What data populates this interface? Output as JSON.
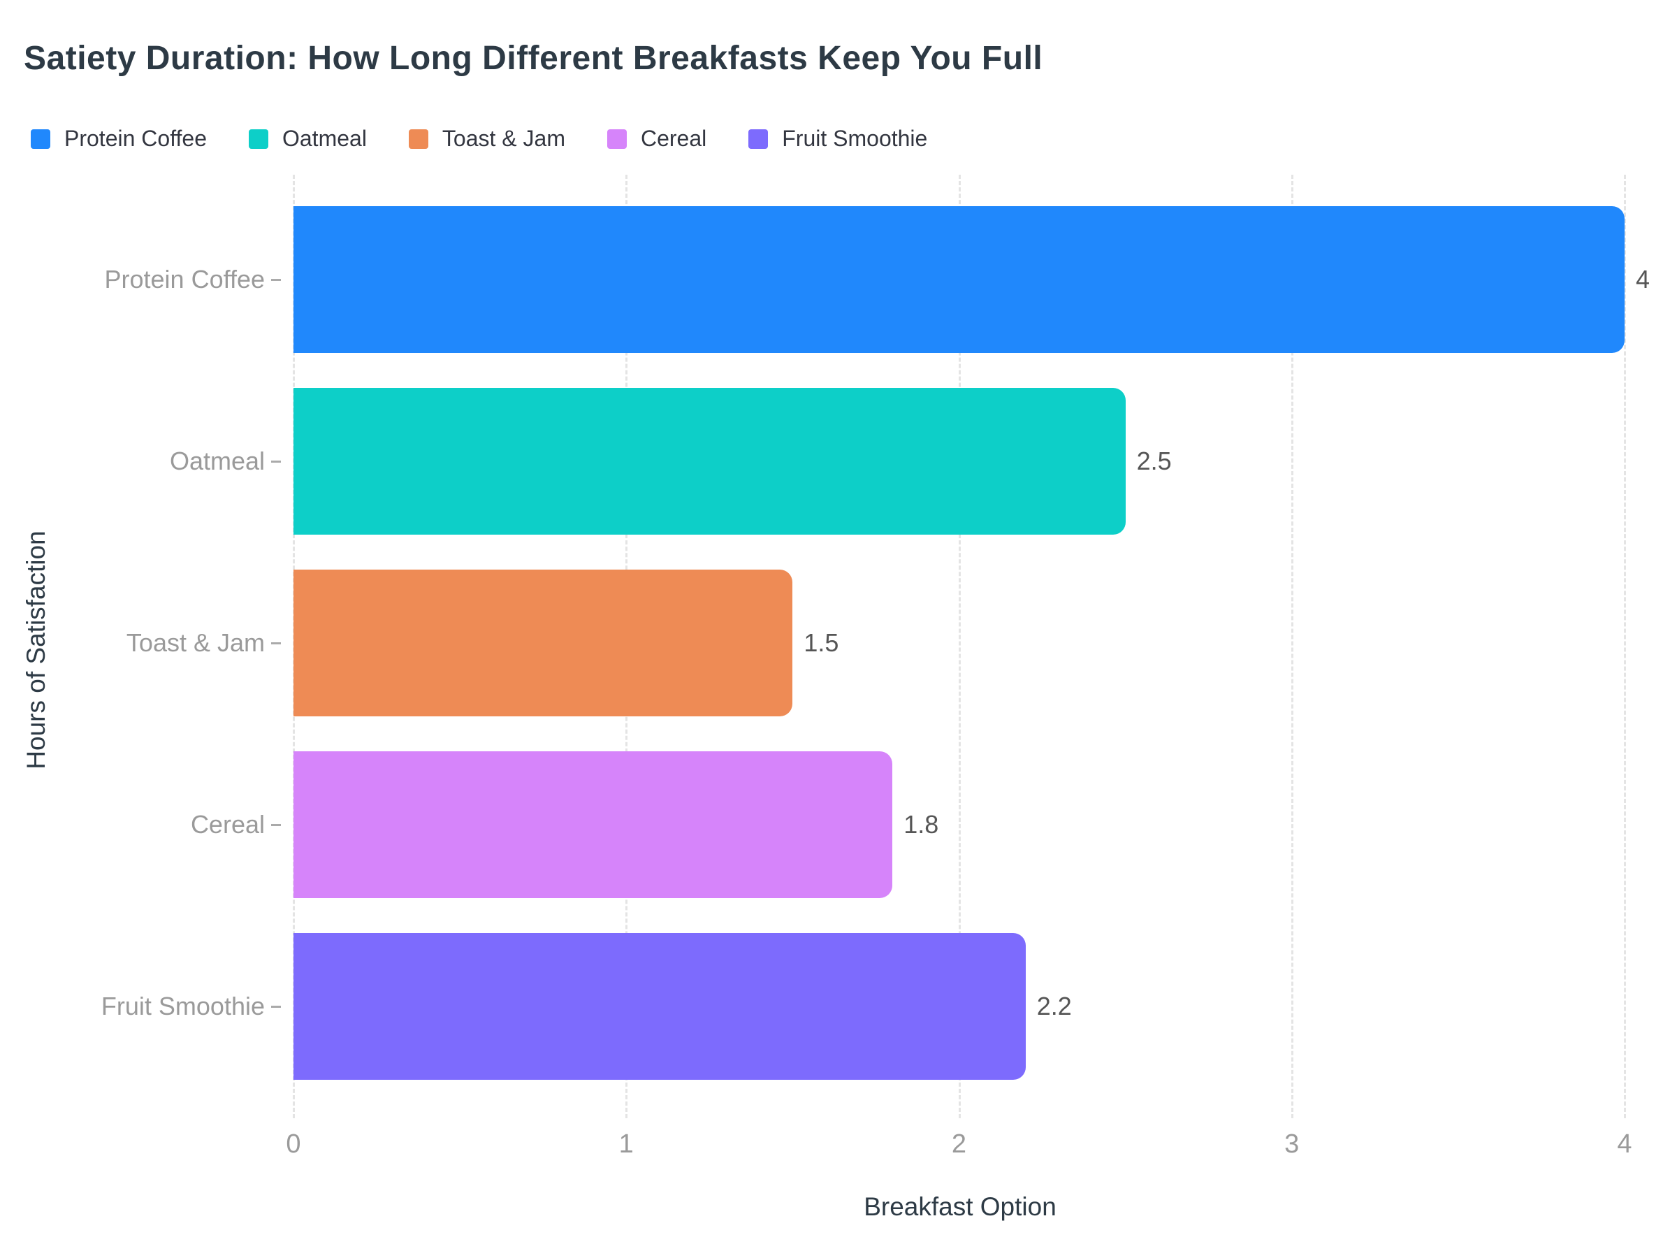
{
  "chart_data": {
    "type": "bar",
    "orientation": "horizontal",
    "title": "Satiety Duration: How Long Different Breakfasts Keep You Full",
    "xlabel": "Breakfast Option",
    "ylabel": "Hours of Satisfaction",
    "categories": [
      "Protein Coffee",
      "Oatmeal",
      "Toast & Jam",
      "Cereal",
      "Fruit Smoothie"
    ],
    "values": [
      4,
      2.5,
      1.5,
      1.8,
      2.2
    ],
    "value_labels": [
      "4",
      "2.5",
      "1.5",
      "1.8",
      "2.2"
    ],
    "colors": [
      "#2088fc",
      "#0dcfc8",
      "#ee8b55",
      "#d684fa",
      "#7d6bfd"
    ],
    "xlim": [
      0,
      4
    ],
    "x_ticks": [
      "0",
      "1",
      "2",
      "3",
      "4"
    ],
    "grid": "vertical-dashed",
    "legend_position": "top-left",
    "legend": [
      {
        "label": "Protein Coffee",
        "color": "#2088fc"
      },
      {
        "label": "Oatmeal",
        "color": "#0dcfc8"
      },
      {
        "label": "Toast & Jam",
        "color": "#ee8b55"
      },
      {
        "label": "Cereal",
        "color": "#d684fa"
      },
      {
        "label": "Fruit Smoothie",
        "color": "#7d6bfd"
      }
    ]
  },
  "style": {
    "title_color": "#2d3a45",
    "axis_title_color": "#2d3a45",
    "tick_label_color": "#9a9a9a",
    "value_label_color": "#555555",
    "gridline_color": "#e4e4e4",
    "background_color": "#ffffff"
  }
}
